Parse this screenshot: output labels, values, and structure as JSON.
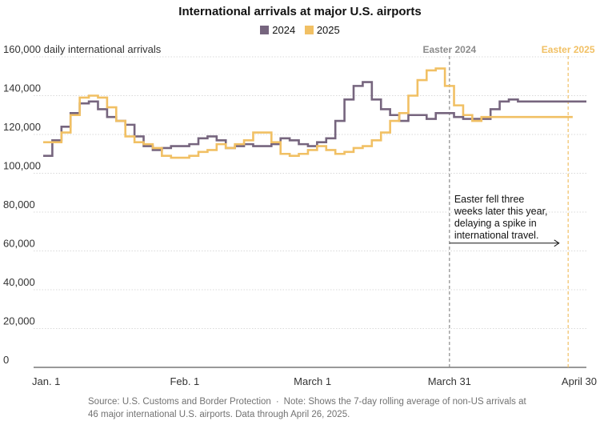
{
  "title": "International arrivals at major U.S. airports",
  "legend": [
    {
      "name": "2024",
      "color": "#76657e"
    },
    {
      "name": "2025",
      "color": "#f1c064"
    }
  ],
  "footer": {
    "source": "Source: U.S. Customs and Border Protection",
    "separator": "·",
    "note": "Note: Shows the 7-day rolling average of non-US arrivals at 46 major international U.S. airports. Data through April 26, 2025."
  },
  "annotation": {
    "lines": [
      "Easter fell three",
      "weeks later this year,",
      "delaying a spike in",
      "international travel."
    ]
  },
  "chart_data": {
    "type": "line",
    "step": true,
    "xlabel": "",
    "ylabel": "daily international arrivals",
    "xlim": [
      0,
      119
    ],
    "ylim": [
      0,
      160000
    ],
    "y_ticks": [
      0,
      20000,
      40000,
      60000,
      80000,
      100000,
      120000,
      140000,
      160000
    ],
    "y_tick_labels": [
      "0",
      "20,000",
      "40,000",
      "60,000",
      "80,000",
      "100,000",
      "120,000",
      "140,000",
      "160,000 daily international arrivals"
    ],
    "x_ticks": [
      {
        "day": 0,
        "label": "Jan. 1"
      },
      {
        "day": 31,
        "label": "Feb. 1"
      },
      {
        "day": 59,
        "label": "March 1"
      },
      {
        "day": 89,
        "label": "March 31"
      },
      {
        "day": 119,
        "label": "April 30"
      }
    ],
    "grid": true,
    "events": [
      {
        "label": "Easter 2024",
        "day": 89,
        "color": "#8b8b8b"
      },
      {
        "label": "Easter 2025",
        "day": 115,
        "color": "#f1c064"
      }
    ],
    "arrow": {
      "from_day": 89,
      "to_day": 113,
      "value": 64000
    },
    "series": [
      {
        "name": "2024",
        "color": "#76657e",
        "x": [
          0,
          2,
          4,
          6,
          8,
          10,
          12,
          14,
          16,
          18,
          20,
          22,
          24,
          26,
          28,
          30,
          32,
          34,
          36,
          38,
          40,
          42,
          44,
          46,
          48,
          50,
          52,
          54,
          56,
          58,
          60,
          62,
          64,
          66,
          68,
          70,
          72,
          74,
          76,
          78,
          80,
          82,
          84,
          86,
          88,
          90,
          92,
          94,
          96,
          98,
          100,
          102,
          104,
          106,
          108,
          110,
          112,
          114,
          116,
          118,
          119
        ],
        "y": [
          109000,
          117000,
          124000,
          131000,
          136000,
          137000,
          133000,
          129000,
          127000,
          125000,
          119000,
          114000,
          112000,
          113000,
          114000,
          114000,
          115000,
          118000,
          119000,
          117000,
          113000,
          114000,
          115000,
          114000,
          114000,
          115000,
          118000,
          117000,
          115000,
          114000,
          116000,
          118000,
          127000,
          138000,
          145000,
          147000,
          138000,
          133000,
          130000,
          127000,
          130000,
          130000,
          128000,
          131000,
          131000,
          129000,
          128000,
          128000,
          128000,
          133000,
          137000,
          138000,
          137000,
          137000,
          137000,
          137000,
          137000,
          137000,
          137000,
          137000,
          137000
        ]
      },
      {
        "name": "2025",
        "color": "#f1c064",
        "x": [
          0,
          2,
          4,
          6,
          8,
          10,
          12,
          14,
          16,
          18,
          20,
          22,
          24,
          26,
          28,
          30,
          32,
          34,
          36,
          38,
          40,
          42,
          44,
          46,
          48,
          50,
          52,
          54,
          56,
          58,
          60,
          62,
          64,
          66,
          68,
          70,
          72,
          74,
          76,
          78,
          80,
          82,
          84,
          86,
          88,
          90,
          92,
          94,
          96,
          98,
          100,
          102,
          104,
          106,
          108,
          110,
          112,
          114,
          116
        ],
        "y": [
          116000,
          116000,
          121000,
          130000,
          139000,
          140000,
          139000,
          134000,
          127000,
          119000,
          116000,
          115000,
          113000,
          109000,
          108000,
          108000,
          109000,
          111000,
          112000,
          115000,
          113000,
          115000,
          117000,
          121000,
          121000,
          116000,
          110000,
          109000,
          110000,
          112000,
          114000,
          112000,
          110000,
          111000,
          113000,
          114000,
          117000,
          121000,
          127000,
          131000,
          140000,
          148000,
          153000,
          154000,
          145000,
          135000,
          130000,
          127000,
          129000,
          129000,
          129000,
          129000,
          129000,
          129000,
          129000,
          129000,
          129000,
          129000,
          129000
        ]
      }
    ]
  }
}
